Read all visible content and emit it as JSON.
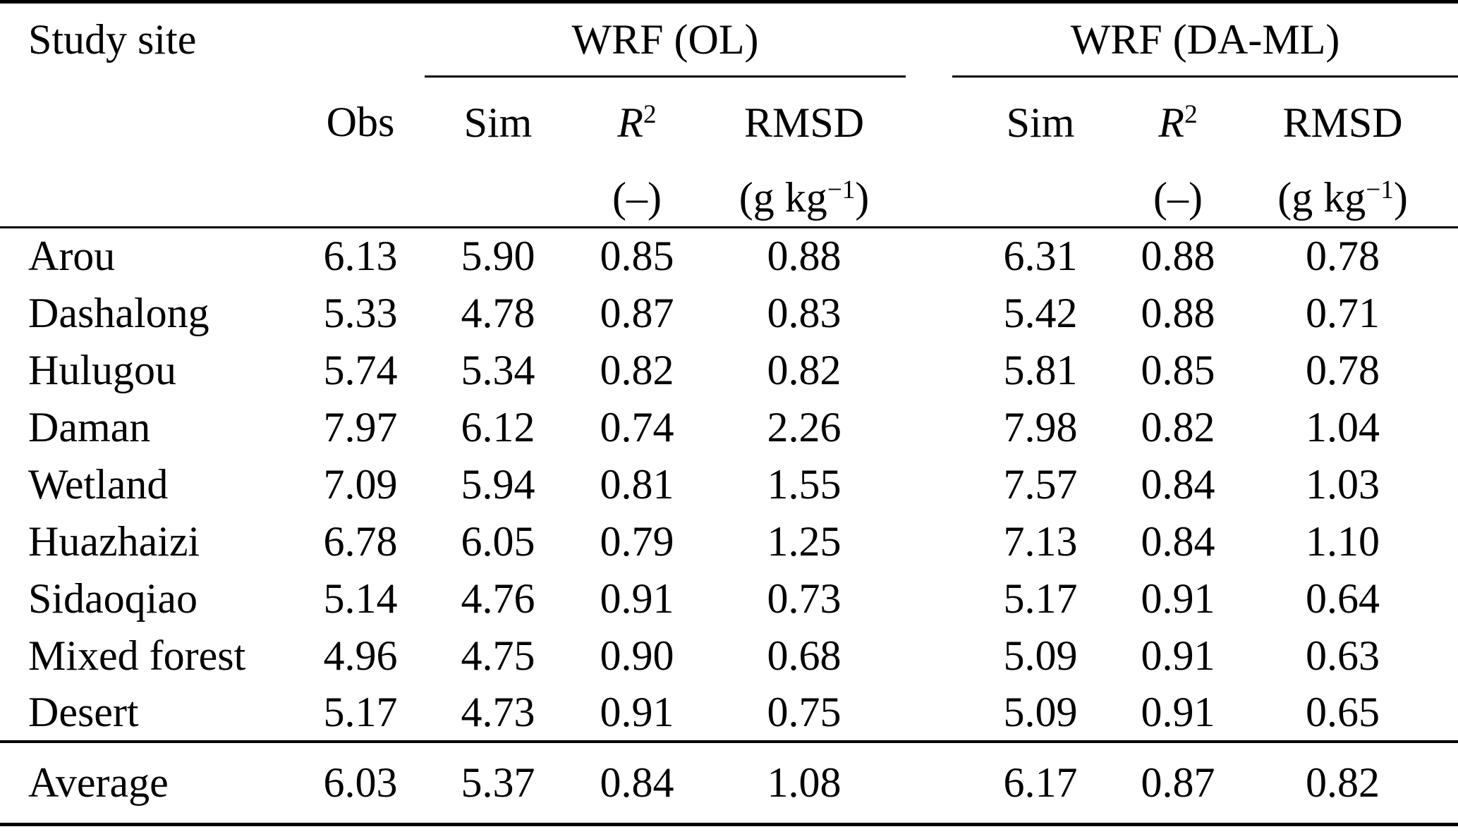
{
  "table": {
    "headers": {
      "study_site": "Study site",
      "group_ol": "WRF (OL)",
      "group_daml": "WRF (DA-ML)",
      "obs": "Obs",
      "sim": "Sim",
      "r2_base": "R",
      "r2_sup": "2",
      "rmsd": "RMSD",
      "r2_unit": "(–)",
      "rmsd_unit_pre": "(g kg",
      "rmsd_unit_sup": "−1",
      "rmsd_unit_post": ")"
    },
    "rows": [
      {
        "site": "Arou",
        "obs": "6.13",
        "ol_sim": "5.90",
        "ol_r2": "0.85",
        "ol_rmsd": "0.88",
        "da_sim": "6.31",
        "da_r2": "0.88",
        "da_rmsd": "0.78"
      },
      {
        "site": "Dashalong",
        "obs": "5.33",
        "ol_sim": "4.78",
        "ol_r2": "0.87",
        "ol_rmsd": "0.83",
        "da_sim": "5.42",
        "da_r2": "0.88",
        "da_rmsd": "0.71"
      },
      {
        "site": "Hulugou",
        "obs": "5.74",
        "ol_sim": "5.34",
        "ol_r2": "0.82",
        "ol_rmsd": "0.82",
        "da_sim": "5.81",
        "da_r2": "0.85",
        "da_rmsd": "0.78"
      },
      {
        "site": "Daman",
        "obs": "7.97",
        "ol_sim": "6.12",
        "ol_r2": "0.74",
        "ol_rmsd": "2.26",
        "da_sim": "7.98",
        "da_r2": "0.82",
        "da_rmsd": "1.04"
      },
      {
        "site": "Wetland",
        "obs": "7.09",
        "ol_sim": "5.94",
        "ol_r2": "0.81",
        "ol_rmsd": "1.55",
        "da_sim": "7.57",
        "da_r2": "0.84",
        "da_rmsd": "1.03"
      },
      {
        "site": "Huazhaizi",
        "obs": "6.78",
        "ol_sim": "6.05",
        "ol_r2": "0.79",
        "ol_rmsd": "1.25",
        "da_sim": "7.13",
        "da_r2": "0.84",
        "da_rmsd": "1.10"
      },
      {
        "site": "Sidaoqiao",
        "obs": "5.14",
        "ol_sim": "4.76",
        "ol_r2": "0.91",
        "ol_rmsd": "0.73",
        "da_sim": "5.17",
        "da_r2": "0.91",
        "da_rmsd": "0.64"
      },
      {
        "site": "Mixed forest",
        "obs": "4.96",
        "ol_sim": "4.75",
        "ol_r2": "0.90",
        "ol_rmsd": "0.68",
        "da_sim": "5.09",
        "da_r2": "0.91",
        "da_rmsd": "0.63"
      },
      {
        "site": "Desert",
        "obs": "5.17",
        "ol_sim": "4.73",
        "ol_r2": "0.91",
        "ol_rmsd": "0.75",
        "da_sim": "5.09",
        "da_r2": "0.91",
        "da_rmsd": "0.65"
      }
    ],
    "average": {
      "site": "Average",
      "obs": "6.03",
      "ol_sim": "5.37",
      "ol_r2": "0.84",
      "ol_rmsd": "1.08",
      "da_sim": "6.17",
      "da_r2": "0.87",
      "da_rmsd": "0.82"
    }
  }
}
